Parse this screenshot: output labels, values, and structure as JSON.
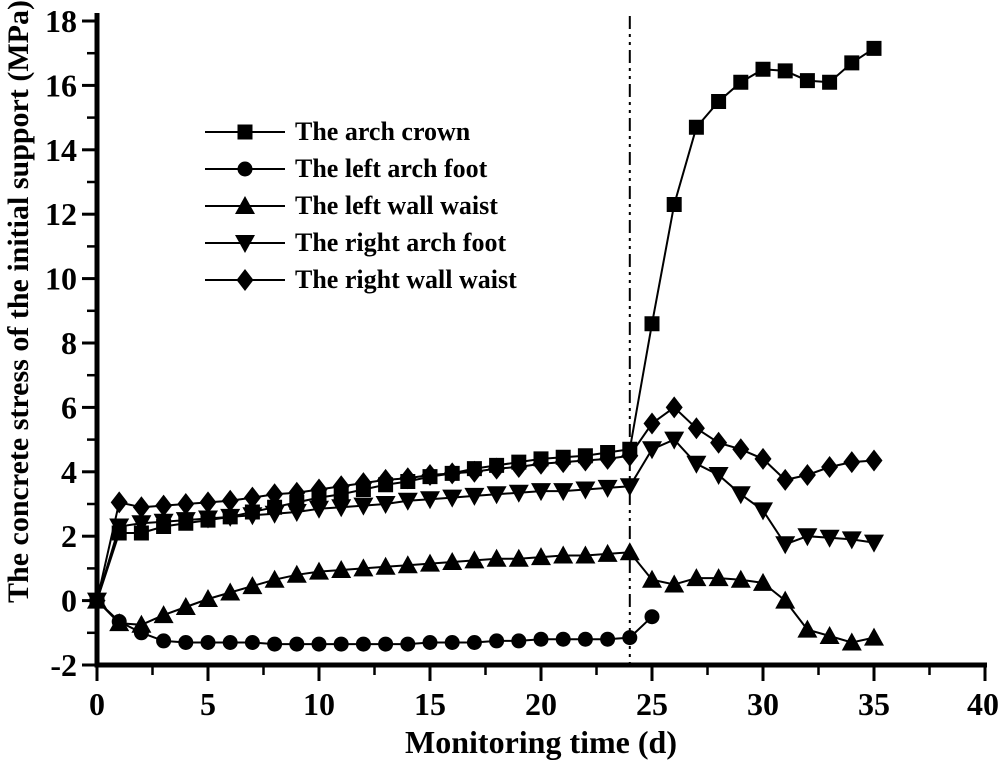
{
  "chart_data": {
    "type": "line",
    "title": "",
    "xlabel": "Monitoring time (d)",
    "ylabel": "The concrete stress of the initial support (MPa)",
    "xlim": [
      0,
      40
    ],
    "ylim": [
      -2,
      18
    ],
    "x_major_ticks": [
      0,
      5,
      10,
      15,
      20,
      25,
      30,
      35,
      40
    ],
    "x_minor_ticks": [
      2.5,
      7.5,
      12.5,
      17.5,
      22.5,
      27.5,
      32.5,
      37.5
    ],
    "y_major_ticks": [
      -2,
      0,
      2,
      4,
      6,
      8,
      10,
      12,
      14,
      16,
      18
    ],
    "y_minor_ticks": [
      -1,
      1,
      3,
      5,
      7,
      9,
      11,
      13,
      15,
      17
    ],
    "grid": false,
    "legend_position": "inside-upper-left",
    "reference_line": {
      "axis": "x",
      "value": 24,
      "style": "dash-dot"
    },
    "colors": {
      "foreground": "#000000",
      "background": "#ffffff"
    },
    "series": [
      {
        "name": "The arch crown",
        "marker": "square",
        "x": [
          0,
          1,
          2,
          3,
          4,
          5,
          6,
          7,
          8,
          9,
          10,
          11,
          12,
          13,
          14,
          15,
          16,
          17,
          18,
          19,
          20,
          21,
          22,
          23,
          24,
          25,
          26,
          27,
          28,
          29,
          30,
          31,
          32,
          33,
          34,
          35
        ],
        "y": [
          0,
          2.1,
          2.1,
          2.3,
          2.4,
          2.5,
          2.6,
          2.75,
          2.9,
          3.05,
          3.2,
          3.3,
          3.45,
          3.6,
          3.7,
          3.85,
          3.95,
          4.1,
          4.2,
          4.3,
          4.4,
          4.45,
          4.5,
          4.6,
          4.7,
          8.6,
          12.3,
          14.7,
          15.5,
          16.1,
          16.5,
          16.45,
          16.15,
          16.1,
          16.7,
          17.15
        ]
      },
      {
        "name": "The left arch foot",
        "marker": "circle",
        "x": [
          0,
          1,
          2,
          3,
          4,
          5,
          6,
          7,
          8,
          9,
          10,
          11,
          12,
          13,
          14,
          15,
          16,
          17,
          18,
          19,
          20,
          21,
          22,
          23,
          24,
          25
        ],
        "y": [
          0,
          -0.65,
          -1.0,
          -1.25,
          -1.3,
          -1.3,
          -1.3,
          -1.3,
          -1.35,
          -1.35,
          -1.35,
          -1.35,
          -1.35,
          -1.35,
          -1.35,
          -1.3,
          -1.3,
          -1.3,
          -1.25,
          -1.25,
          -1.2,
          -1.2,
          -1.2,
          -1.2,
          -1.15,
          -0.5
        ]
      },
      {
        "name": "The left wall waist",
        "marker": "triangle-up",
        "x": [
          0,
          1,
          2,
          3,
          4,
          5,
          6,
          7,
          8,
          9,
          10,
          11,
          12,
          13,
          14,
          15,
          16,
          17,
          18,
          19,
          20,
          21,
          22,
          23,
          24,
          25,
          26,
          27,
          28,
          29,
          30,
          31,
          32,
          33,
          34,
          35
        ],
        "y": [
          0,
          -0.7,
          -0.75,
          -0.45,
          -0.2,
          0.05,
          0.25,
          0.45,
          0.65,
          0.8,
          0.9,
          0.95,
          1.0,
          1.05,
          1.1,
          1.15,
          1.2,
          1.25,
          1.3,
          1.3,
          1.35,
          1.4,
          1.4,
          1.45,
          1.5,
          0.65,
          0.5,
          0.7,
          0.7,
          0.65,
          0.55,
          0.0,
          -0.9,
          -1.1,
          -1.3,
          -1.15
        ]
      },
      {
        "name": "The right arch foot",
        "marker": "triangle-down",
        "x": [
          0,
          1,
          2,
          3,
          4,
          5,
          6,
          7,
          8,
          9,
          10,
          11,
          12,
          13,
          14,
          15,
          16,
          17,
          18,
          19,
          20,
          21,
          22,
          23,
          24,
          25,
          26,
          27,
          28,
          29,
          30,
          31,
          32,
          33,
          34,
          35
        ],
        "y": [
          0,
          2.3,
          2.4,
          2.45,
          2.5,
          2.55,
          2.6,
          2.65,
          2.7,
          2.75,
          2.85,
          2.9,
          2.95,
          3.0,
          3.1,
          3.15,
          3.2,
          3.25,
          3.3,
          3.35,
          3.4,
          3.4,
          3.45,
          3.5,
          3.55,
          4.7,
          5.0,
          4.25,
          3.9,
          3.3,
          2.8,
          1.75,
          2.0,
          1.95,
          1.9,
          1.8
        ]
      },
      {
        "name": "The right wall waist",
        "marker": "diamond",
        "x": [
          0,
          1,
          2,
          3,
          4,
          5,
          6,
          7,
          8,
          9,
          10,
          11,
          12,
          13,
          14,
          15,
          16,
          17,
          18,
          19,
          20,
          21,
          22,
          23,
          24,
          25,
          26,
          27,
          28,
          29,
          30,
          31,
          32,
          33,
          34,
          35
        ],
        "y": [
          0,
          3.05,
          2.9,
          2.95,
          3.0,
          3.05,
          3.1,
          3.2,
          3.3,
          3.35,
          3.45,
          3.55,
          3.65,
          3.75,
          3.8,
          3.9,
          3.95,
          4.0,
          4.1,
          4.15,
          4.25,
          4.3,
          4.35,
          4.4,
          4.5,
          5.5,
          6.0,
          5.35,
          4.9,
          4.7,
          4.4,
          3.75,
          3.9,
          4.15,
          4.3,
          4.35
        ]
      }
    ]
  }
}
